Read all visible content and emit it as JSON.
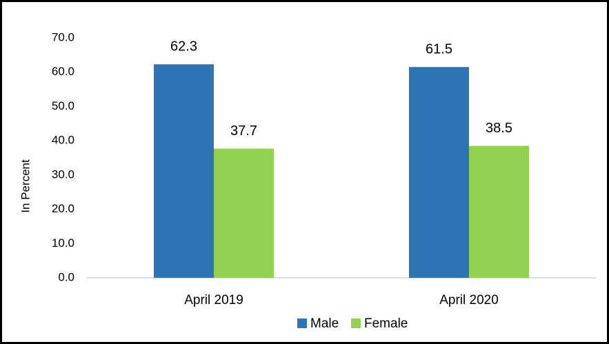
{
  "chart_data": {
    "type": "bar",
    "y_axis_label": "In Percent",
    "categories": [
      "April 2019",
      "April 2020"
    ],
    "series": [
      {
        "name": "Male",
        "color": "#2e75b6",
        "values": [
          62.3,
          61.5
        ]
      },
      {
        "name": "Female",
        "color": "#92d050",
        "values": [
          37.7,
          38.5
        ]
      }
    ],
    "ylim": [
      0,
      70
    ],
    "yticks": [
      {
        "value": 0,
        "label": "0.0"
      },
      {
        "value": 10,
        "label": "10.0"
      },
      {
        "value": 20,
        "label": "20.0"
      },
      {
        "value": 30,
        "label": "30.0"
      },
      {
        "value": 40,
        "label": "40.0"
      },
      {
        "value": 50,
        "label": "50.0"
      },
      {
        "value": 60,
        "label": "60.0"
      },
      {
        "value": 70,
        "label": "70.0"
      }
    ],
    "grid": false,
    "legend": "bottom"
  }
}
